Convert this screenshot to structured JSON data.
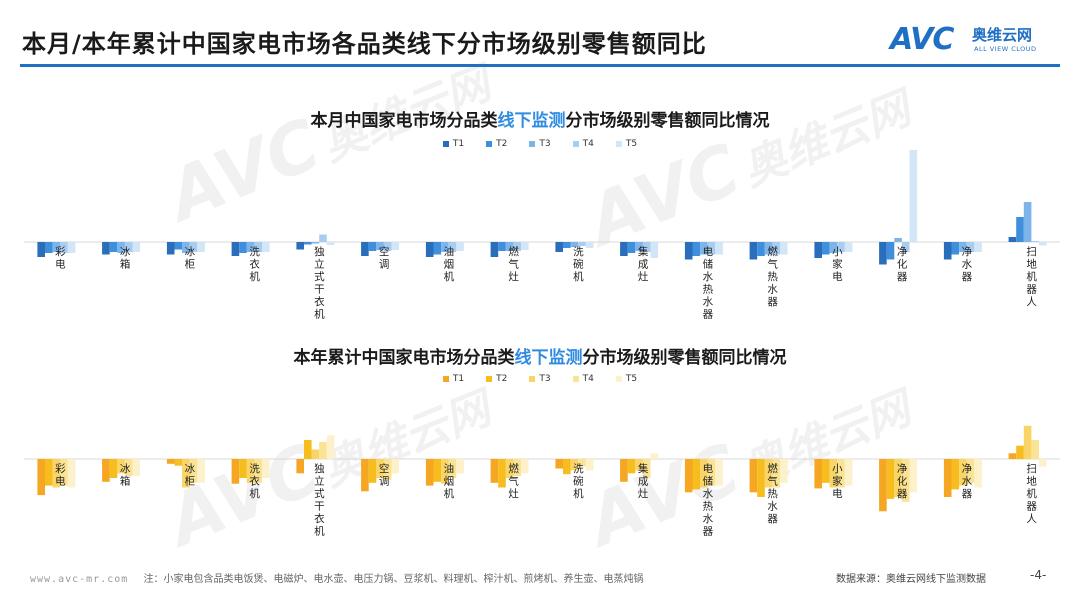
{
  "header": {
    "title": "本月/本年累计中国家电市场各品类线下分市场级别零售额同比",
    "logo_brand": "AVC",
    "logo_cn": "奥维云网",
    "logo_en": "ALL VIEW CLOUD"
  },
  "watermark": {
    "text_en": "AVC",
    "text_cn": "奥维云网",
    "text_sub": "ALL VIEW CLOUD"
  },
  "chart1": {
    "title_pre": "本月中国家电市场分品类",
    "title_highlight": "线下监测",
    "title_post": "分市场级别零售额同比情况"
  },
  "chart2": {
    "title_pre": "本年累计中国家电市场分品类",
    "title_highlight": "线下监测",
    "title_post": "分市场级别零售额同比情况"
  },
  "colors": {
    "blue": [
      "#2a6ebb",
      "#3f8fdc",
      "#7db5ea",
      "#a9cdf1",
      "#d3e6f8"
    ],
    "orange": [
      "#f5a623",
      "#f7bc1e",
      "#f9d466",
      "#fbe394",
      "#fdf1cb"
    ]
  },
  "chart_data": [
    {
      "type": "bar",
      "title": "本月中国家电市场分品类线下监测分市场级别零售额同比情况",
      "categories": [
        "彩电",
        "冰箱",
        "冰柜",
        "洗衣机",
        "独立式干衣机",
        "空调",
        "油烟机",
        "燃气灶",
        "洗碗机",
        "集成灶",
        "电储水热水器",
        "燃气热水器",
        "小家电",
        "净化器",
        "净水器",
        "扫地机器人"
      ],
      "legend": [
        "T1",
        "T2",
        "T3",
        "T4",
        "T5"
      ],
      "ylim": [
        -0.6,
        2.2
      ],
      "series": [
        {
          "name": "T1",
          "values": [
            -0.3,
            -0.25,
            -0.25,
            -0.28,
            -0.15,
            -0.28,
            -0.3,
            -0.3,
            -0.2,
            -0.28,
            -0.35,
            -0.35,
            -0.32,
            -0.45,
            -0.35,
            0.1
          ]
        },
        {
          "name": "T2",
          "values": [
            -0.22,
            -0.2,
            -0.15,
            -0.22,
            -0.05,
            -0.18,
            -0.25,
            -0.18,
            -0.12,
            -0.22,
            -0.28,
            -0.28,
            -0.25,
            -0.35,
            -0.25,
            0.5
          ]
        },
        {
          "name": "T3",
          "values": [
            -0.2,
            -0.22,
            -0.22,
            -0.2,
            -0.03,
            -0.16,
            -0.2,
            -0.18,
            -0.1,
            -0.18,
            -0.25,
            -0.25,
            -0.22,
            0.08,
            -0.2,
            0.8
          ]
        },
        {
          "name": "T4",
          "values": [
            -0.22,
            -0.2,
            -0.2,
            -0.2,
            0.15,
            -0.18,
            -0.2,
            -0.18,
            -0.08,
            -0.2,
            -0.25,
            -0.25,
            -0.2,
            -0.2,
            -0.2,
            0.02
          ]
        },
        {
          "name": "T5",
          "values": [
            -0.22,
            -0.2,
            -0.2,
            -0.2,
            -0.06,
            -0.16,
            -0.18,
            -0.16,
            -0.12,
            -0.32,
            -0.25,
            -0.25,
            -0.2,
            1.95,
            -0.2,
            -0.07
          ]
        }
      ]
    },
    {
      "type": "bar",
      "title": "本年累计中国家电市场分品类线下监测分市场级别零售额同比情况",
      "categories": [
        "彩电",
        "冰箱",
        "冰柜",
        "洗衣机",
        "独立式干衣机",
        "空调",
        "油烟机",
        "燃气灶",
        "洗碗机",
        "集成灶",
        "电储水热水器",
        "燃气热水器",
        "小家电",
        "净化器",
        "净水器",
        "扫地机器人"
      ],
      "legend": [
        "T1",
        "T2",
        "T3",
        "T4",
        "T5"
      ],
      "ylim": [
        -0.6,
        0.4
      ],
      "series": [
        {
          "name": "T1",
          "values": [
            -0.38,
            -0.24,
            -0.05,
            -0.26,
            -0.15,
            -0.34,
            -0.28,
            -0.25,
            -0.1,
            -0.24,
            -0.35,
            -0.35,
            -0.31,
            -0.55,
            -0.4,
            0.06
          ]
        },
        {
          "name": "T2",
          "values": [
            -0.28,
            -0.2,
            -0.07,
            -0.2,
            0.2,
            -0.25,
            -0.24,
            -0.3,
            -0.16,
            -0.15,
            -0.32,
            -0.4,
            -0.25,
            -0.42,
            -0.32,
            0.14
          ]
        },
        {
          "name": "T3",
          "values": [
            -0.3,
            -0.15,
            -0.3,
            -0.25,
            0.1,
            -0.2,
            -0.26,
            -0.2,
            -0.12,
            -0.12,
            -0.3,
            -0.3,
            -0.3,
            -0.4,
            -0.28,
            0.35
          ]
        },
        {
          "name": "T4",
          "values": [
            -0.28,
            -0.18,
            -0.25,
            -0.25,
            0.18,
            -0.22,
            -0.2,
            -0.18,
            -0.08,
            -0.2,
            -0.28,
            -0.3,
            -0.3,
            -0.45,
            -0.25,
            0.2
          ]
        },
        {
          "name": "T5",
          "values": [
            -0.3,
            -0.18,
            -0.25,
            -0.2,
            0.25,
            -0.15,
            -0.15,
            -0.15,
            -0.12,
            0.06,
            -0.28,
            -0.25,
            -0.28,
            -0.35,
            -0.3,
            -0.08
          ]
        }
      ]
    }
  ],
  "footer": {
    "url": "www.avc-mr.com",
    "note": "注：小家电包含品类电饭煲、电磁炉、电水壶、电压力锅、豆浆机、料理机、榨汁机、煎烤机、养生壶、电蒸炖锅",
    "source": "数据来源：奥维云网线下监测数据",
    "page": "-4-"
  }
}
